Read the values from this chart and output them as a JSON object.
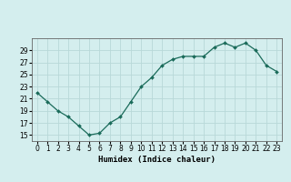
{
  "x": [
    0,
    1,
    2,
    3,
    4,
    5,
    6,
    7,
    8,
    9,
    10,
    11,
    12,
    13,
    14,
    15,
    16,
    17,
    18,
    19,
    20,
    21,
    22,
    23
  ],
  "y": [
    22,
    20.5,
    19,
    18,
    16.5,
    15,
    15.3,
    17,
    18,
    20.5,
    23,
    24.5,
    26.5,
    27.5,
    28,
    28,
    28,
    29.5,
    30.2,
    29.5,
    30.2,
    29,
    26.5,
    25.5
  ],
  "line_color": "#1a6b5a",
  "marker": "D",
  "marker_size": 2,
  "bg_color": "#d4eeee",
  "grid_color": "#b8d8d8",
  "xlabel": "Humidex (Indice chaleur)",
  "xlim": [
    -0.5,
    23.5
  ],
  "ylim": [
    14,
    31
  ],
  "yticks": [
    15,
    17,
    19,
    21,
    23,
    25,
    27,
    29
  ],
  "xticks": [
    0,
    1,
    2,
    3,
    4,
    5,
    6,
    7,
    8,
    9,
    10,
    11,
    12,
    13,
    14,
    15,
    16,
    17,
    18,
    19,
    20,
    21,
    22,
    23
  ],
  "label_fontsize": 6.5,
  "tick_fontsize": 5.5
}
